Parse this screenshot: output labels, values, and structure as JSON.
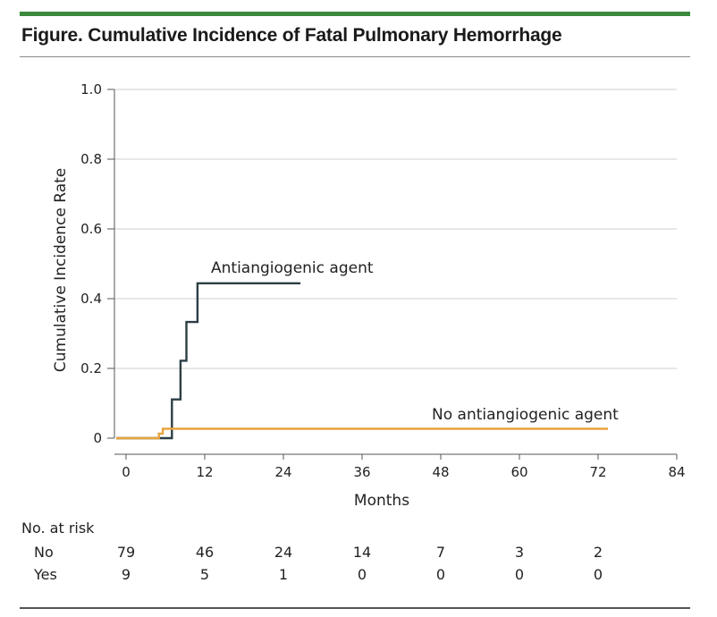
{
  "figure": {
    "title": "Figure. Cumulative Incidence of Fatal Pulmonary Hemorrhage",
    "accent_color": "#3b8a3e"
  },
  "chart_data": {
    "type": "line",
    "xlabel": "Months",
    "ylabel": "Cumulative Incidence Rate",
    "xlim": [
      0,
      84
    ],
    "ylim": [
      0,
      1.0
    ],
    "x_ticks": [
      0,
      12,
      24,
      36,
      48,
      60,
      72,
      84
    ],
    "y_ticks": [
      0,
      0.2,
      0.4,
      0.6,
      0.8,
      1.0
    ],
    "y_tick_labels": [
      "0",
      "0.2",
      "0.4",
      "0.6",
      "0.8",
      "1.0"
    ],
    "grid": "horizontal",
    "series": [
      {
        "name": "Antiangiogenic agent",
        "color": "#2c3e45",
        "step": true,
        "points": [
          [
            -1.5,
            0
          ],
          [
            7,
            0
          ],
          [
            7,
            0.111
          ],
          [
            8.3,
            0.111
          ],
          [
            8.3,
            0.222
          ],
          [
            9.2,
            0.222
          ],
          [
            9.2,
            0.333
          ],
          [
            10.9,
            0.333
          ],
          [
            10.9,
            0.444
          ],
          [
            26.6,
            0.444
          ]
        ]
      },
      {
        "name": "No antiangiogenic agent",
        "color": "#e8a33d",
        "step": true,
        "points": [
          [
            -1.5,
            0
          ],
          [
            5,
            0
          ],
          [
            5,
            0.013
          ],
          [
            5.6,
            0.013
          ],
          [
            5.6,
            0.027
          ],
          [
            73.5,
            0.027
          ]
        ]
      }
    ],
    "at_risk": {
      "header": "No. at risk",
      "x_times": [
        0,
        12,
        24,
        36,
        48,
        60,
        72
      ],
      "rows": [
        {
          "label": "No",
          "values": [
            "79",
            "46",
            "24",
            "14",
            "7",
            "3",
            "2"
          ]
        },
        {
          "label": "Yes",
          "values": [
            "9",
            "5",
            "1",
            "0",
            "0",
            "0",
            "0"
          ]
        }
      ]
    }
  }
}
